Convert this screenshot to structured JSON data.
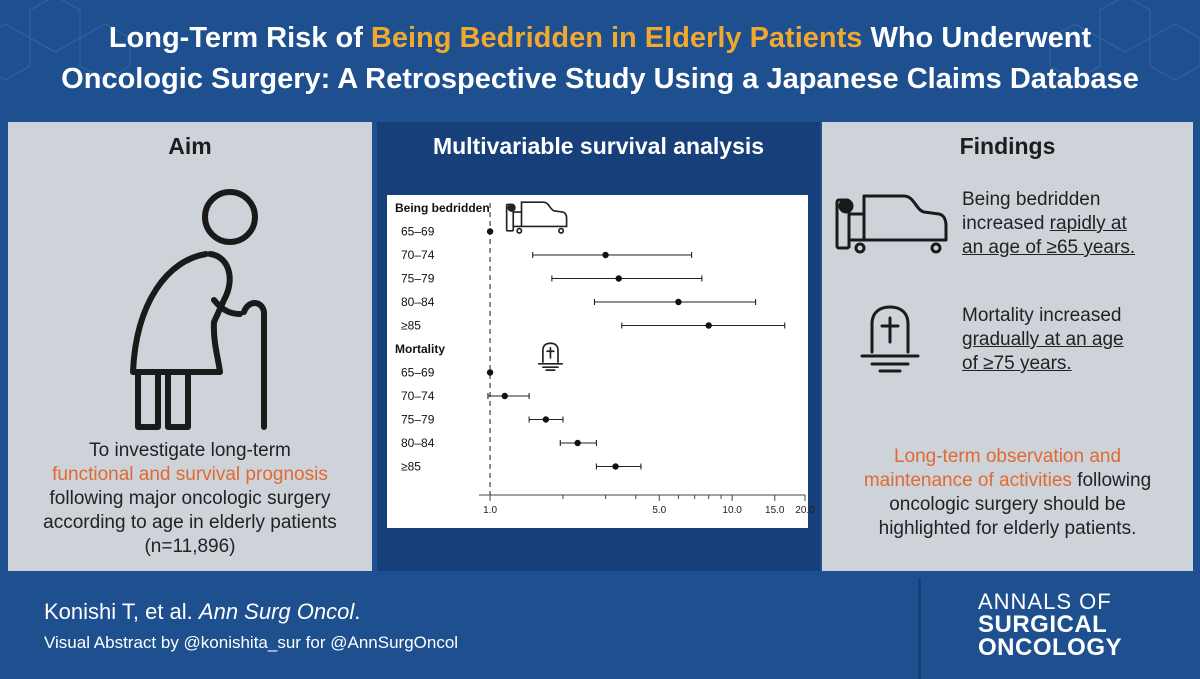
{
  "title": {
    "part1": "Long-Term Risk of ",
    "highlight": "Being Bedridden in Elderly Patients",
    "part2": " Who Underwent",
    "line2": "Oncologic Surgery: A Retrospective Study Using a Japanese Claims Database"
  },
  "aim": {
    "heading": "Aim",
    "line1": "To investigate long-term",
    "highlight": "functional and survival prognosis",
    "line3": "following major oncologic surgery",
    "line4": "according to age in elderly patients",
    "line5": "(n=11,896)"
  },
  "analysis": {
    "heading": "Multivariable survival analysis"
  },
  "chart_data": {
    "type": "forest",
    "x_scale": "log",
    "reference_line": 1.0,
    "xlim": [
      0.9,
      20.0
    ],
    "x_tick_labels": [
      "1.0",
      "5.0",
      "10.0",
      "15.0",
      "20.0"
    ],
    "x_ticks": [
      1,
      2,
      3,
      4,
      5,
      6,
      7,
      8,
      9,
      10,
      15,
      20
    ],
    "groups": [
      {
        "label": "Being bedridden",
        "icon": "bed-icon",
        "rows": [
          {
            "label": "65–69",
            "hr": 1.0,
            "lo": null,
            "hi": null
          },
          {
            "label": "70–74",
            "hr": 3.0,
            "lo": 1.5,
            "hi": 6.8
          },
          {
            "label": "75–79",
            "hr": 3.4,
            "lo": 1.8,
            "hi": 7.5
          },
          {
            "label": "80–84",
            "hr": 6.0,
            "lo": 2.7,
            "hi": 12.5
          },
          {
            "label": "≥85",
            "hr": 8.0,
            "lo": 3.5,
            "hi": 16.5
          }
        ]
      },
      {
        "label": "Mortality",
        "icon": "tombstone-icon",
        "rows": [
          {
            "label": "65–69",
            "hr": 1.0,
            "lo": null,
            "hi": null
          },
          {
            "label": "70–74",
            "hr": 1.15,
            "lo": 0.98,
            "hi": 1.45
          },
          {
            "label": "75–79",
            "hr": 1.7,
            "lo": 1.45,
            "hi": 2.0
          },
          {
            "label": "80–84",
            "hr": 2.3,
            "lo": 1.95,
            "hi": 2.75
          },
          {
            "label": "≥85",
            "hr": 3.3,
            "lo": 2.75,
            "hi": 4.2
          }
        ]
      }
    ]
  },
  "findings": {
    "heading": "Findings",
    "f1_line1": "Being bedridden",
    "f1_pre": "increased ",
    "f1_u1": "rapidly at",
    "f1_u2": "an age of ≥65 years.",
    "f2_line1": "Mortality increased",
    "f2_u1": "gradually at an age",
    "f2_u2": "of ≥75 years.",
    "c_highlight1": "Long-term observation and",
    "c_highlight2": "maintenance of activities",
    "c_rest1": " following",
    "c_line3": "oncologic surgery should be",
    "c_line4": "highlighted for elderly patients."
  },
  "footer": {
    "authors": "Konishi T, et al. ",
    "journal_abbrev": "Ann Surg Oncol",
    "period": ".",
    "credit": "Visual Abstract by @konishita_sur for @AnnSurgOncol",
    "journal_line1": "ANNALS OF",
    "journal_line2": "SURGICAL",
    "journal_line3": "ONCOLOGY"
  },
  "colors": {
    "background": "#1e4f8f",
    "panel": "#cdd3d9",
    "panel_mid": "#173f7a",
    "accent_title": "#f0a830",
    "accent_text": "#e06a34"
  }
}
